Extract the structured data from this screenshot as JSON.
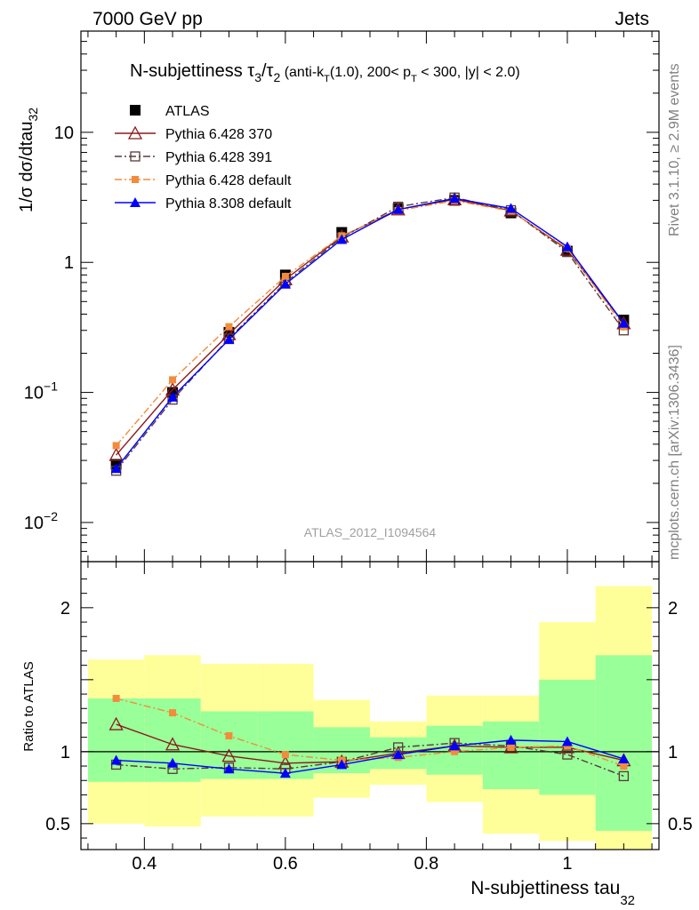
{
  "header": {
    "left_label": "7000 GeV pp",
    "right_label": "Jets",
    "side_rivet": "Rivet 3.1.10, ≥ 2.9M events",
    "side_mcplots": "mcplots.cern.ch [arXiv:1306.3436]",
    "analysis_id": "ATLAS_2012_I1094564"
  },
  "chart_data": [
    {
      "type": "scatter",
      "title_main": "N-subjettiness τ",
      "title_sub1": "3",
      "title_mid": "/τ",
      "title_sub2": "2",
      "title_tail1": " (anti-k",
      "title_tail_sub": "T",
      "title_tail2": "(1.0), 200< p",
      "title_tail_sub2": "T",
      "title_tail3": " < 300, |y| < 2.0)",
      "ylabel_main": "1/σ dσ/dtau",
      "ylabel_sub": "32",
      "ylog": true,
      "ylim": [
        0.005,
        60
      ],
      "xlim": [
        0.31,
        1.13
      ],
      "yticks": [
        {
          "value": 0.01,
          "base": "10",
          "exp": "−2"
        },
        {
          "value": 0.1,
          "base": "10",
          "exp": "−1"
        },
        {
          "value": 1,
          "base": "1",
          "exp": ""
        },
        {
          "value": 10,
          "base": "10",
          "exp": ""
        }
      ],
      "legend_position": "top-left",
      "x": [
        0.36,
        0.44,
        0.52,
        0.6,
        0.68,
        0.76,
        0.84,
        0.92,
        1.0,
        1.08
      ],
      "series": [
        {
          "name": "ATLAS",
          "color": "#000000",
          "marker": "square-filled",
          "line": "none",
          "values": [
            0.028,
            0.1,
            0.29,
            0.8,
            1.7,
            2.6,
            3.0,
            2.4,
            1.22,
            0.36
          ]
        },
        {
          "name": "Pythia 6.428 370",
          "color": "#8b1a1a",
          "marker": "triangle-open",
          "line": "solid",
          "values": [
            0.033,
            0.105,
            0.28,
            0.74,
            1.58,
            2.55,
            3.05,
            2.5,
            1.25,
            0.34
          ]
        },
        {
          "name": "Pythia 6.428 391",
          "color": "#5a3a3a",
          "marker": "square-open",
          "line": "dashdot",
          "values": [
            0.025,
            0.088,
            0.26,
            0.7,
            1.55,
            2.68,
            3.15,
            2.52,
            1.2,
            0.3
          ]
        },
        {
          "name": "Pythia 6.428 default",
          "color": "#f28c3c",
          "marker": "square-small",
          "line": "dashdot",
          "values": [
            0.039,
            0.125,
            0.32,
            0.78,
            1.6,
            2.5,
            2.98,
            2.48,
            1.28,
            0.32
          ]
        },
        {
          "name": "Pythia 8.308 default",
          "color": "#0000ff",
          "marker": "triangle-filled",
          "line": "solid",
          "values": [
            0.026,
            0.092,
            0.255,
            0.68,
            1.5,
            2.55,
            3.1,
            2.6,
            1.32,
            0.34
          ]
        }
      ]
    },
    {
      "type": "scatter",
      "ylabel": "Ratio to ATLAS",
      "xlabel_main": "N-subjettiness tau",
      "xlabel_sub": "32",
      "ylim": [
        0.32,
        2.32
      ],
      "xlim": [
        0.31,
        1.13
      ],
      "xticks": [
        0.4,
        0.6,
        0.8,
        1.0
      ],
      "xtick_labels": [
        "0.4",
        "0.6",
        "0.8",
        "1"
      ],
      "yticks": [
        0.5,
        1,
        2
      ],
      "ytick_labels": [
        "0.5",
        "1",
        "2"
      ],
      "reference_line": 1,
      "bands": {
        "bin_edges": [
          0.32,
          0.4,
          0.48,
          0.56,
          0.64,
          0.72,
          0.8,
          0.88,
          0.96,
          1.04,
          1.12
        ],
        "yellow_low": [
          0.5,
          0.48,
          0.55,
          0.55,
          0.68,
          0.77,
          0.65,
          0.43,
          0.38,
          0.32
        ],
        "yellow_high": [
          1.64,
          1.67,
          1.61,
          1.61,
          1.36,
          1.21,
          1.39,
          1.39,
          1.9,
          2.15
        ],
        "green_low": [
          0.79,
          0.79,
          0.81,
          0.81,
          0.85,
          0.88,
          0.84,
          0.74,
          0.7,
          0.45
        ],
        "green_high": [
          1.37,
          1.37,
          1.28,
          1.28,
          1.17,
          1.1,
          1.18,
          1.21,
          1.5,
          1.67
        ],
        "yellow_color": "#ffff99",
        "green_color": "#99ff99"
      },
      "x": [
        0.36,
        0.44,
        0.52,
        0.6,
        0.68,
        0.76,
        0.84,
        0.92,
        1.0,
        1.08
      ],
      "series": [
        {
          "name": "Pythia 6.428 370",
          "color": "#8b1a1a",
          "marker": "triangle-open",
          "line": "solid",
          "values": [
            1.19,
            1.05,
            0.97,
            0.92,
            0.93,
            0.99,
            1.04,
            1.03,
            1.03,
            0.94
          ]
        },
        {
          "name": "Pythia 6.428 391",
          "color": "#5a3a3a",
          "marker": "square-open",
          "line": "dashdot",
          "values": [
            0.91,
            0.88,
            0.89,
            0.88,
            0.93,
            1.03,
            1.06,
            1.04,
            0.98,
            0.83
          ]
        },
        {
          "name": "Pythia 6.428 default",
          "color": "#f28c3c",
          "marker": "square-small",
          "line": "dashdot",
          "values": [
            1.37,
            1.27,
            1.11,
            0.98,
            0.94,
            0.96,
            1.0,
            1.03,
            1.04,
            0.9
          ]
        },
        {
          "name": "Pythia 8.308 default",
          "color": "#0000ff",
          "marker": "triangle-filled",
          "line": "solid",
          "values": [
            0.94,
            0.92,
            0.88,
            0.85,
            0.91,
            0.98,
            1.04,
            1.08,
            1.07,
            0.95
          ]
        }
      ]
    }
  ]
}
